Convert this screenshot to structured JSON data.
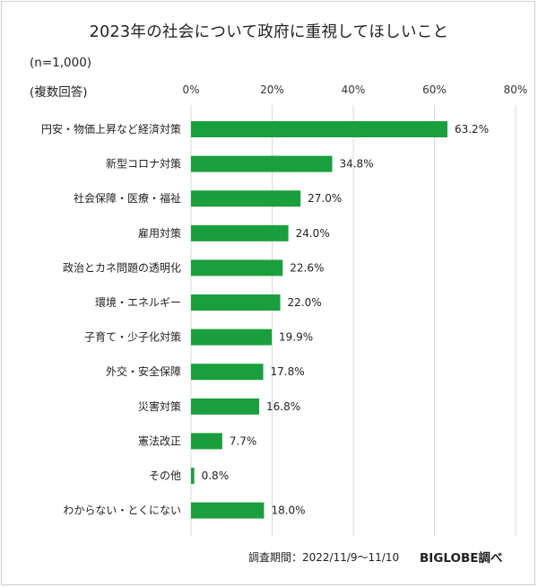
{
  "chart_data": {
    "type": "bar",
    "orientation": "horizontal",
    "title": "2023年の社会について政府に重視してほしいこと",
    "sample_note": "(n=1,000)",
    "answer_note": "(複数回答)",
    "categories": [
      "円安・物価上昇など経済対策",
      "新型コロナ対策",
      "社会保障・医療・福祉",
      "雇用対策",
      "政治とカネ問題の透明化",
      "環境・エネルギー",
      "子育て・少子化対策",
      "外交・安全保障",
      "災害対策",
      "憲法改正",
      "その他",
      "わからない・とくにない"
    ],
    "values": [
      63.2,
      34.8,
      27.0,
      24.0,
      22.6,
      22.0,
      19.9,
      17.8,
      16.8,
      7.7,
      0.8,
      18.0
    ],
    "value_labels": [
      "63.2%",
      "34.8%",
      "27.0%",
      "24.0%",
      "22.6%",
      "22.0%",
      "19.9%",
      "17.8%",
      "16.8%",
      "7.7%",
      "0.8%",
      "18.0%"
    ],
    "xlim": [
      0,
      80
    ],
    "xticks": [
      0,
      20,
      40,
      60,
      80
    ],
    "xtick_labels": [
      "0%",
      "20%",
      "40%",
      "60%",
      "80%"
    ],
    "grid": true,
    "bar_color": "#1a9e3e",
    "grid_color": "#d9d9d9"
  },
  "footer": {
    "source": "調査期間：2022/11/9～11/10",
    "brand": "BIGLOBE調べ"
  }
}
